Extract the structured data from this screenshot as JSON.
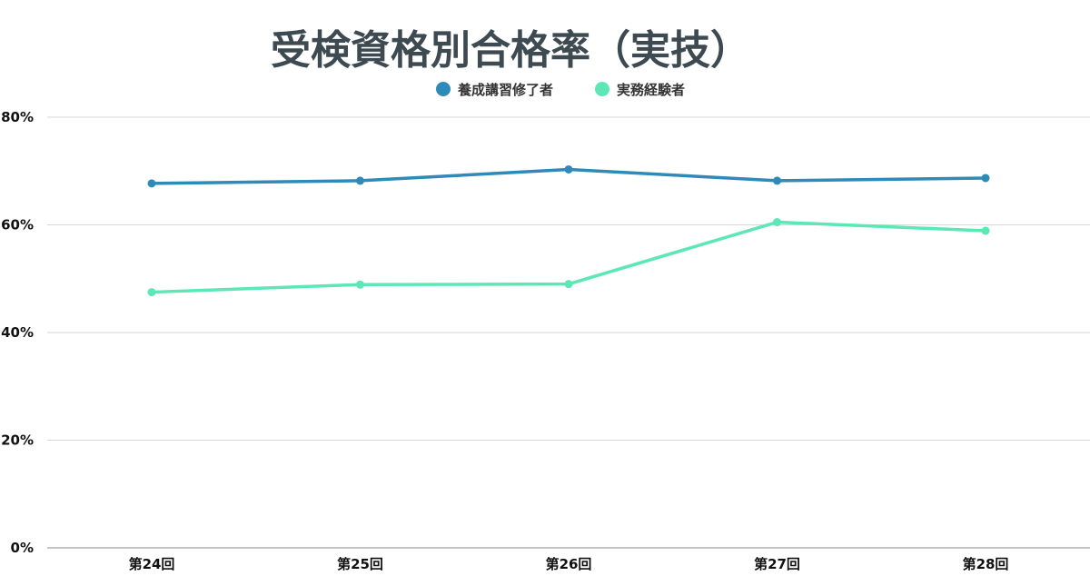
{
  "chart_data": {
    "type": "line",
    "title": "受検資格別合格率（実技）",
    "xlabel": "",
    "ylabel": "",
    "categories": [
      "第24回",
      "第25回",
      "第26回",
      "第27回",
      "第28回"
    ],
    "ylim": [
      0,
      80
    ],
    "yticks": [
      0,
      20,
      40,
      60,
      80
    ],
    "ytick_labels": [
      "0%",
      "20%",
      "40%",
      "60%",
      "80%"
    ],
    "grid": true,
    "legend_position": "top-center",
    "series": [
      {
        "name": "養成講習修了者",
        "color": "#2e8ab8",
        "values": [
          67.7,
          68.2,
          70.3,
          68.2,
          68.7
        ]
      },
      {
        "name": "実務経験者",
        "color": "#5ce8b4",
        "values": [
          47.5,
          48.9,
          49.0,
          60.5,
          58.9
        ]
      }
    ]
  }
}
